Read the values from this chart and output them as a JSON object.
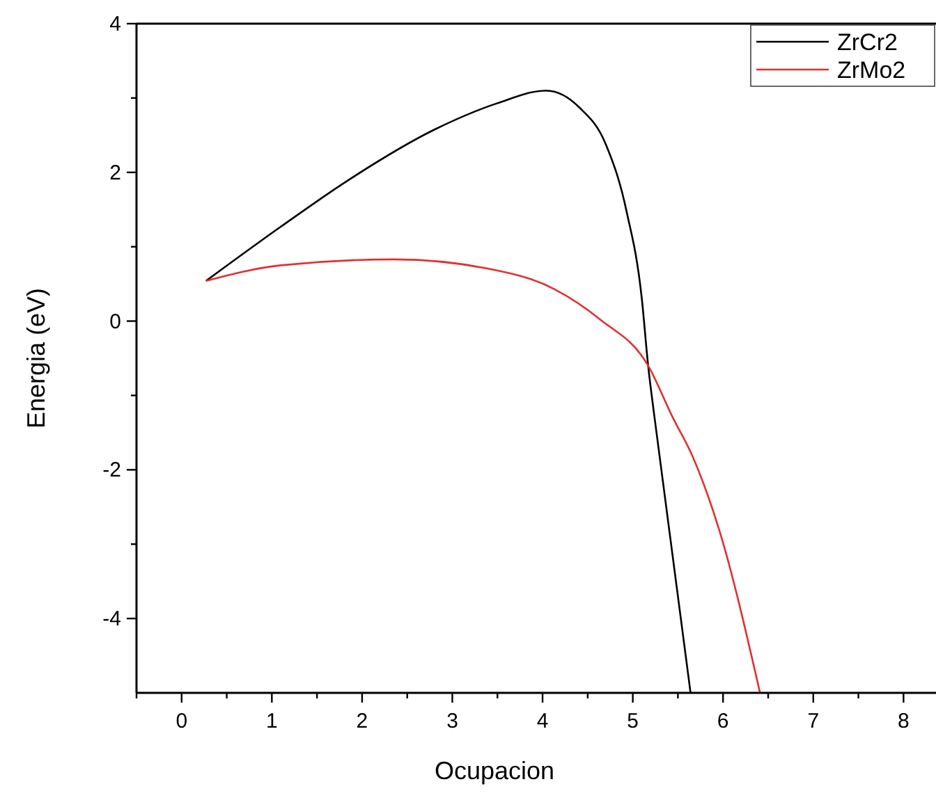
{
  "chart_data": {
    "type": "line",
    "xlabel": "Ocupacion",
    "ylabel": "Energia (eV)",
    "xlim": [
      -0.5,
      8.36
    ],
    "ylim": [
      -5,
      4
    ],
    "xticks": [
      {
        "value": -0.5,
        "label": null
      },
      0,
      {
        "value": 0.5,
        "label": null
      },
      1,
      {
        "value": 1.5,
        "label": null
      },
      2,
      {
        "value": 2.5,
        "label": null
      },
      3,
      {
        "value": 3.5,
        "label": null
      },
      4,
      {
        "value": 4.5,
        "label": null
      },
      5,
      {
        "value": 5.5,
        "label": null
      },
      6,
      {
        "value": 6.5,
        "label": null
      },
      7,
      {
        "value": 7.5,
        "label": null
      },
      8
    ],
    "yticks": [
      -4,
      {
        "value": -3,
        "label": null
      },
      -2,
      {
        "value": -1,
        "label": null
      },
      0,
      {
        "value": 1,
        "label": null
      },
      2,
      {
        "value": 3,
        "label": null
      },
      4
    ],
    "grid": false,
    "legend": "top right",
    "marker": "none",
    "line_style": "solid",
    "series": [
      {
        "name": "ZrCr2",
        "color": "#000000",
        "x": [
          0.27,
          1.1,
          1.84,
          2.81,
          3.5,
          4.04,
          4.41,
          4.7,
          4.93,
          5.1,
          5.17,
          5.24,
          5.64
        ],
        "values": [
          0.54,
          1.27,
          1.89,
          2.58,
          2.93,
          3.1,
          2.87,
          2.38,
          1.48,
          0.3,
          -0.6,
          -1.29,
          -5
        ]
      },
      {
        "name": "ZrMo2",
        "color": "#e03030",
        "x": [
          0.27,
          1.1,
          2.36,
          3.38,
          4.13,
          4.64,
          5.17,
          5.44,
          5.67,
          5.96,
          6.41
        ],
        "values": [
          0.54,
          0.75,
          0.83,
          0.71,
          0.43,
          0.02,
          -0.6,
          -1.29,
          -1.84,
          -2.82,
          -5
        ]
      }
    ]
  }
}
